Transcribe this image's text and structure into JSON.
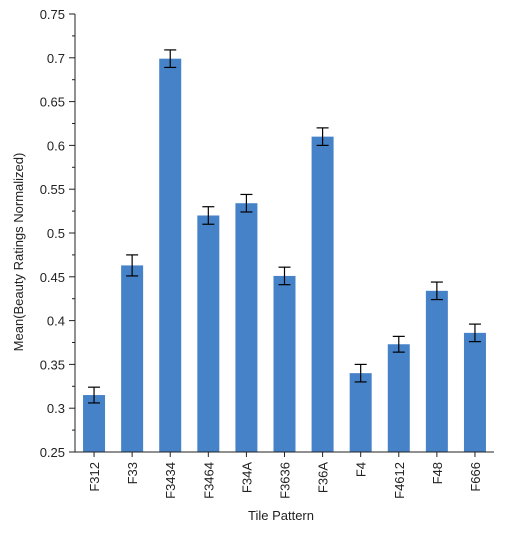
{
  "chart_data": {
    "type": "bar",
    "xlabel": "Tile Pattern",
    "ylabel": "Mean(Beauty Ratings Normalized)",
    "ylim": [
      0.25,
      0.75
    ],
    "yticks": [
      "0.25",
      "0.3",
      "0.35",
      "0.4",
      "0.45",
      "0.5",
      "0.55",
      "0.6",
      "0.65",
      "0.7",
      "0.75"
    ],
    "categories": [
      "F312",
      "F33",
      "F3434",
      "F3464",
      "F34A",
      "F3636",
      "F36A",
      "F4",
      "F4612",
      "F48",
      "F666"
    ],
    "values": [
      0.315,
      0.463,
      0.699,
      0.52,
      0.534,
      0.451,
      0.61,
      0.34,
      0.373,
      0.434,
      0.386
    ],
    "error_lower": [
      0.306,
      0.451,
      0.689,
      0.51,
      0.524,
      0.441,
      0.6,
      0.33,
      0.364,
      0.424,
      0.376
    ],
    "error_upper": [
      0.324,
      0.475,
      0.709,
      0.53,
      0.544,
      0.461,
      0.62,
      0.35,
      0.382,
      0.444,
      0.396
    ],
    "grid": false,
    "legend": "none",
    "colors": {
      "bar": "#4682c8",
      "axis": "#222222",
      "error": "#000000",
      "background": "#ffffff"
    }
  }
}
